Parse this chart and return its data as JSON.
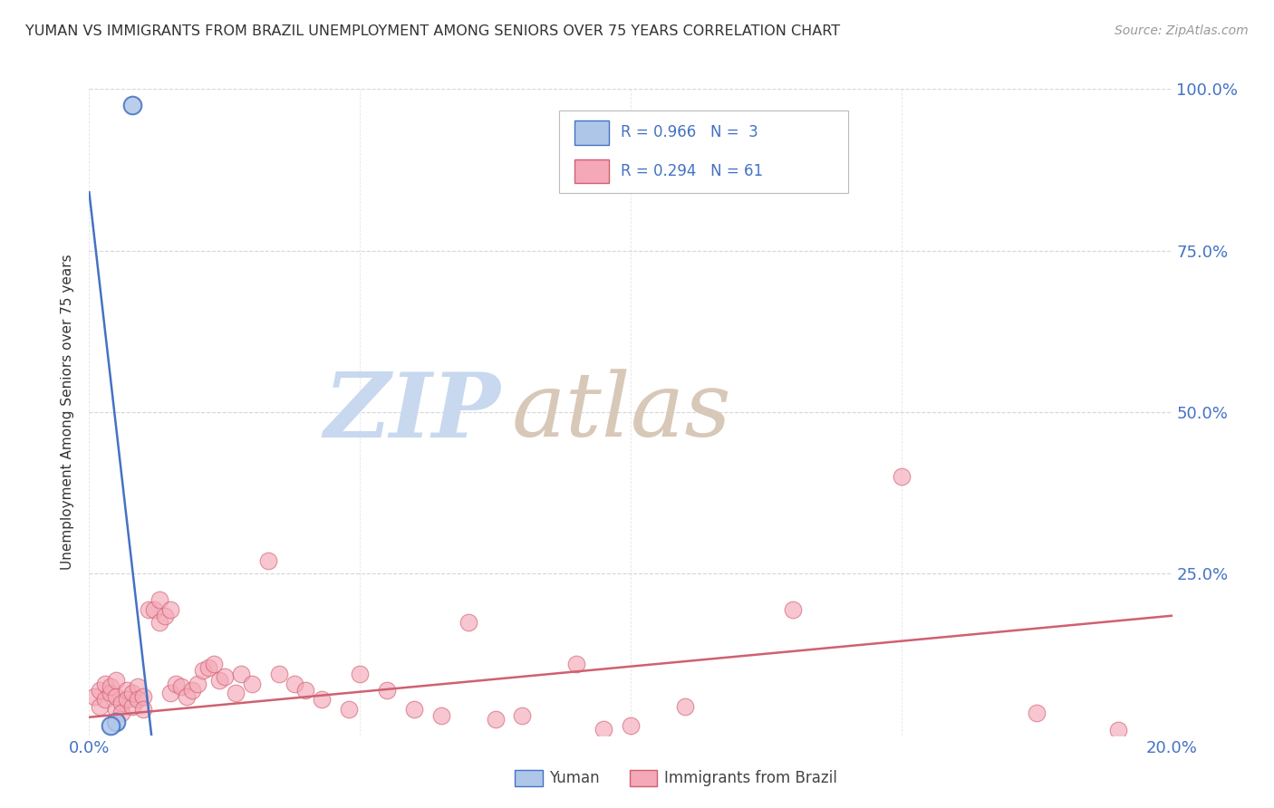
{
  "title": "YUMAN VS IMMIGRANTS FROM BRAZIL UNEMPLOYMENT AMONG SENIORS OVER 75 YEARS CORRELATION CHART",
  "source": "Source: ZipAtlas.com",
  "ylabel": "Unemployment Among Seniors over 75 years",
  "xlim": [
    0.0,
    0.2
  ],
  "ylim": [
    0.0,
    1.0
  ],
  "xtick_positions": [
    0.0,
    0.05,
    0.1,
    0.15,
    0.2
  ],
  "xtick_labels": [
    "0.0%",
    "",
    "",
    "",
    "20.0%"
  ],
  "ytick_positions": [
    0.25,
    0.5,
    0.75,
    1.0
  ],
  "ytick_labels_right": [
    "25.0%",
    "50.0%",
    "75.0%",
    "100.0%"
  ],
  "yuman_color": "#aec6e8",
  "brazil_color": "#f4a8b8",
  "yuman_line_color": "#4472c4",
  "brazil_line_color": "#d06070",
  "watermark_zip_color": "#c8d8ee",
  "watermark_atlas_color": "#d8c8b8",
  "background_color": "#ffffff",
  "grid_color": "#cccccc",
  "yuman_scatter_x": [
    0.008,
    0.005,
    0.004
  ],
  "yuman_scatter_y": [
    0.975,
    0.02,
    0.015
  ],
  "yuman_trendline_x": [
    0.0,
    0.0115
  ],
  "yuman_trendline_y": [
    0.84,
    0.0
  ],
  "brazil_trendline_x": [
    0.0,
    0.2
  ],
  "brazil_trendline_y": [
    0.028,
    0.185
  ],
  "brazil_scatter_x": [
    0.001,
    0.002,
    0.002,
    0.003,
    0.003,
    0.004,
    0.004,
    0.005,
    0.005,
    0.005,
    0.006,
    0.006,
    0.007,
    0.007,
    0.008,
    0.008,
    0.009,
    0.009,
    0.01,
    0.01,
    0.011,
    0.012,
    0.013,
    0.013,
    0.014,
    0.015,
    0.015,
    0.016,
    0.017,
    0.018,
    0.019,
    0.02,
    0.021,
    0.022,
    0.023,
    0.024,
    0.025,
    0.027,
    0.028,
    0.03,
    0.033,
    0.035,
    0.038,
    0.04,
    0.043,
    0.048,
    0.05,
    0.055,
    0.06,
    0.065,
    0.07,
    0.075,
    0.08,
    0.09,
    0.095,
    0.1,
    0.11,
    0.13,
    0.15,
    0.175,
    0.19
  ],
  "brazil_scatter_y": [
    0.06,
    0.045,
    0.07,
    0.055,
    0.08,
    0.065,
    0.075,
    0.04,
    0.06,
    0.085,
    0.05,
    0.035,
    0.07,
    0.055,
    0.045,
    0.065,
    0.075,
    0.055,
    0.06,
    0.04,
    0.195,
    0.195,
    0.21,
    0.175,
    0.185,
    0.195,
    0.065,
    0.08,
    0.075,
    0.06,
    0.07,
    0.08,
    0.1,
    0.105,
    0.11,
    0.085,
    0.09,
    0.065,
    0.095,
    0.08,
    0.27,
    0.095,
    0.08,
    0.07,
    0.055,
    0.04,
    0.095,
    0.07,
    0.04,
    0.03,
    0.175,
    0.025,
    0.03,
    0.11,
    0.01,
    0.015,
    0.045,
    0.195,
    0.4,
    0.035,
    0.008
  ]
}
